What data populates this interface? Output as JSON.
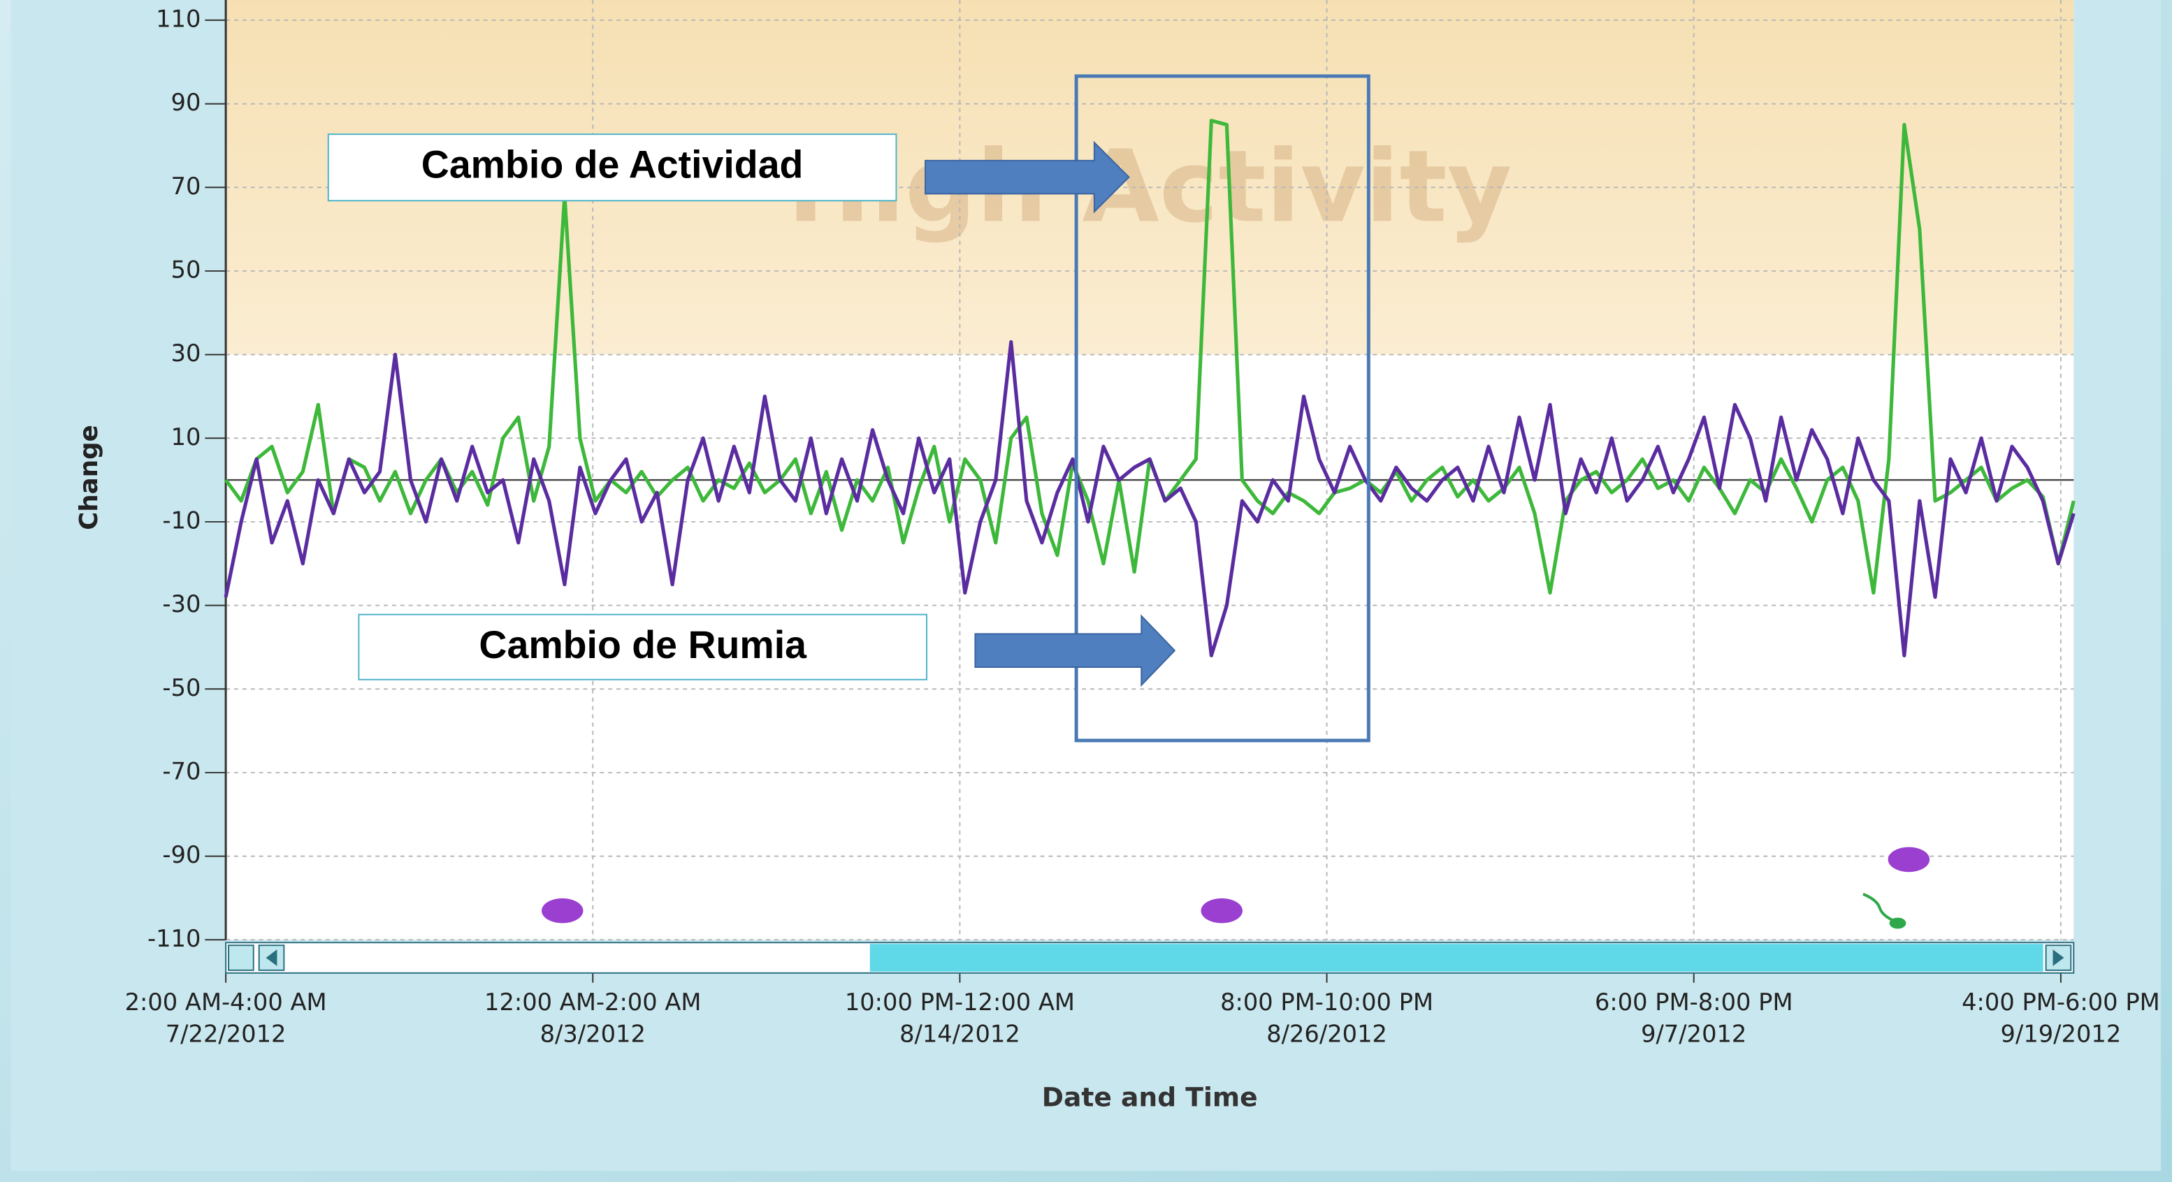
{
  "chart_data": {
    "type": "line",
    "watermark": "High Activity",
    "x_label": "Date and Time",
    "y_label": "Change",
    "high_activity_threshold": 30,
    "annotations": [
      "Cambio de Actividad",
      "Cambio de Rumia"
    ],
    "xlim": [
      "2012-07-22T02:00",
      "2012-09-20T02:00"
    ],
    "xticks": [
      {
        "value": "2012-07-22T02:00",
        "label": [
          "2:00 AM-4:00 AM",
          "7/22/2012"
        ]
      },
      {
        "value": "2012-08-03T00:00",
        "label": [
          "12:00 AM-2:00 AM",
          "8/3/2012"
        ]
      },
      {
        "value": "2012-08-14T22:00",
        "label": [
          "10:00 PM-12:00 AM",
          "8/14/2012"
        ]
      },
      {
        "value": "2012-08-26T20:00",
        "label": [
          "8:00 PM-10:00 PM",
          "8/26/2012"
        ]
      },
      {
        "value": "2012-09-07T18:00",
        "label": [
          "6:00 PM-8:00 PM",
          "9/7/2012"
        ]
      },
      {
        "value": "2012-09-19T16:00",
        "label": [
          "4:00 PM-6:00 PM",
          "9/19/2012"
        ]
      }
    ],
    "ylim": [
      -110,
      110
    ],
    "yticks": [
      110,
      90,
      70,
      50,
      30,
      10,
      -10,
      -30,
      -50,
      -70,
      -90,
      -110
    ],
    "grid": true,
    "x": [
      "2012-07-22T02:00",
      "2012-07-22T14:00",
      "2012-07-23T02:00",
      "2012-07-23T14:00",
      "2012-07-24T02:00",
      "2012-07-24T14:00",
      "2012-07-25T02:00",
      "2012-07-25T14:00",
      "2012-07-26T02:00",
      "2012-07-26T14:00",
      "2012-07-27T02:00",
      "2012-07-27T14:00",
      "2012-07-28T02:00",
      "2012-07-28T14:00",
      "2012-07-29T02:00",
      "2012-07-29T14:00",
      "2012-07-30T02:00",
      "2012-07-30T14:00",
      "2012-07-31T02:00",
      "2012-07-31T14:00",
      "2012-08-01T02:00",
      "2012-08-01T14:00",
      "2012-08-02T02:00",
      "2012-08-02T14:00",
      "2012-08-03T02:00",
      "2012-08-03T14:00",
      "2012-08-04T02:00",
      "2012-08-04T14:00",
      "2012-08-05T02:00",
      "2012-08-05T14:00",
      "2012-08-06T02:00",
      "2012-08-06T14:00",
      "2012-08-07T02:00",
      "2012-08-07T14:00",
      "2012-08-08T02:00",
      "2012-08-08T14:00",
      "2012-08-09T02:00",
      "2012-08-09T14:00",
      "2012-08-10T02:00",
      "2012-08-10T14:00",
      "2012-08-11T02:00",
      "2012-08-11T14:00",
      "2012-08-12T02:00",
      "2012-08-12T14:00",
      "2012-08-13T02:00",
      "2012-08-13T14:00",
      "2012-08-14T02:00",
      "2012-08-14T14:00",
      "2012-08-15T02:00",
      "2012-08-15T14:00",
      "2012-08-16T02:00",
      "2012-08-16T14:00",
      "2012-08-17T02:00",
      "2012-08-17T14:00",
      "2012-08-18T02:00",
      "2012-08-18T14:00",
      "2012-08-19T02:00",
      "2012-08-19T14:00",
      "2012-08-20T02:00",
      "2012-08-20T14:00",
      "2012-08-21T02:00",
      "2012-08-21T14:00",
      "2012-08-22T02:00",
      "2012-08-22T14:00",
      "2012-08-23T02:00",
      "2012-08-23T14:00",
      "2012-08-24T02:00",
      "2012-08-24T14:00",
      "2012-08-25T02:00",
      "2012-08-25T14:00",
      "2012-08-26T02:00",
      "2012-08-26T14:00",
      "2012-08-27T02:00",
      "2012-08-27T14:00",
      "2012-08-28T02:00",
      "2012-08-28T14:00",
      "2012-08-29T02:00",
      "2012-08-29T14:00",
      "2012-08-30T02:00",
      "2012-08-30T14:00",
      "2012-08-31T02:00",
      "2012-08-31T14:00",
      "2012-09-01T02:00",
      "2012-09-01T14:00",
      "2012-09-02T02:00",
      "2012-09-02T14:00",
      "2012-09-03T02:00",
      "2012-09-03T14:00",
      "2012-09-04T02:00",
      "2012-09-04T14:00",
      "2012-09-05T02:00",
      "2012-09-05T14:00",
      "2012-09-06T02:00",
      "2012-09-06T14:00",
      "2012-09-07T02:00",
      "2012-09-07T14:00",
      "2012-09-08T02:00",
      "2012-09-08T14:00",
      "2012-09-09T02:00",
      "2012-09-09T14:00",
      "2012-09-10T02:00",
      "2012-09-10T14:00",
      "2012-09-11T02:00",
      "2012-09-11T14:00",
      "2012-09-12T02:00",
      "2012-09-12T14:00",
      "2012-09-13T02:00",
      "2012-09-13T14:00",
      "2012-09-14T02:00",
      "2012-09-14T14:00",
      "2012-09-15T02:00",
      "2012-09-15T14:00",
      "2012-09-16T02:00",
      "2012-09-16T14:00",
      "2012-09-17T02:00",
      "2012-09-17T14:00",
      "2012-09-18T02:00",
      "2012-09-18T14:00",
      "2012-09-19T02:00",
      "2012-09-19T14:00",
      "2012-09-20T02:00"
    ],
    "series": [
      {
        "color": "#3db83a",
        "values": [
          0,
          -5,
          5,
          8,
          -3,
          2,
          18,
          -8,
          5,
          3,
          -5,
          2,
          -8,
          0,
          5,
          -3,
          2,
          -6,
          10,
          15,
          -5,
          8,
          68,
          10,
          -5,
          0,
          -3,
          2,
          -4,
          0,
          3,
          -5,
          0,
          -2,
          4,
          -3,
          0,
          5,
          -8,
          2,
          -12,
          0,
          -5,
          3,
          -15,
          -2,
          8,
          -10,
          5,
          0,
          -15,
          10,
          15,
          -8,
          -18,
          4,
          -5,
          -20,
          0,
          -22,
          5,
          -5,
          0,
          5,
          86,
          85,
          0,
          -5,
          -8,
          -3,
          -5,
          -8,
          -3,
          -2,
          0,
          -3,
          2,
          -5,
          0,
          3,
          -4,
          0,
          -5,
          -2,
          3,
          -8,
          -27,
          -5,
          0,
          2,
          -3,
          0,
          5,
          -2,
          0,
          -5,
          3,
          -2,
          -8,
          0,
          -3,
          5,
          -2,
          -10,
          0,
          3,
          -5,
          -27,
          5,
          85,
          60,
          -5,
          -3,
          0,
          3,
          -5,
          -2,
          0,
          -4,
          -20,
          -5
        ]
      },
      {
        "color": "#5a2ca0",
        "values": [
          -28,
          -10,
          5,
          -15,
          -5,
          -20,
          0,
          -8,
          5,
          -3,
          2,
          30,
          0,
          -10,
          5,
          -5,
          8,
          -3,
          0,
          -15,
          5,
          -5,
          -25,
          3,
          -8,
          0,
          5,
          -10,
          -3,
          -25,
          0,
          10,
          -5,
          8,
          -3,
          20,
          0,
          -5,
          10,
          -8,
          5,
          -5,
          12,
          0,
          -8,
          10,
          -3,
          5,
          -27,
          -10,
          0,
          33,
          -5,
          -15,
          -3,
          5,
          -10,
          8,
          0,
          3,
          5,
          -5,
          -2,
          -10,
          -42,
          -30,
          -5,
          -10,
          0,
          -5,
          20,
          5,
          -3,
          8,
          0,
          -5,
          3,
          -2,
          -5,
          0,
          3,
          -5,
          8,
          -3,
          15,
          0,
          18,
          -8,
          5,
          -3,
          10,
          -5,
          0,
          8,
          -3,
          5,
          15,
          -2,
          18,
          10,
          -5,
          15,
          0,
          12,
          5,
          -8,
          10,
          0,
          -5,
          -42,
          -5,
          -28,
          5,
          -3,
          10,
          -5,
          8,
          3,
          -5,
          -20,
          -8
        ]
      }
    ]
  }
}
